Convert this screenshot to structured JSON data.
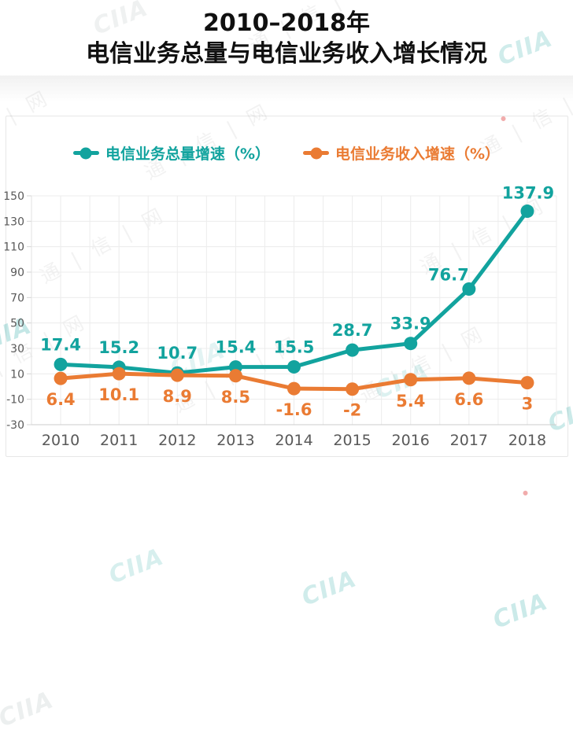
{
  "title": {
    "line1": "2010–2018年",
    "line2": "电信业务总量与电信业务收入增长情况"
  },
  "watermark": {
    "brand": "CIIA",
    "site_text": "通 | 信 | 网"
  },
  "chart_data": {
    "type": "line",
    "title": "2010–2018年电信业务总量与电信业务收入增长情况",
    "categories": [
      "2010",
      "2011",
      "2012",
      "2013",
      "2014",
      "2015",
      "2016",
      "2017",
      "2018"
    ],
    "series": [
      {
        "name": "电信业务总量增速（%）",
        "color": "#12a39e",
        "values": [
          17.4,
          15.2,
          10.7,
          15.4,
          15.5,
          28.7,
          33.9,
          76.7,
          137.9
        ]
      },
      {
        "name": "电信业务收入增速（%）",
        "color": "#ea7b33",
        "values": [
          6.4,
          10.1,
          8.9,
          8.5,
          -1.6,
          -2,
          5.4,
          6.6,
          3
        ]
      }
    ],
    "xlabel": "",
    "ylabel": "",
    "ylim": [
      -30,
      150
    ],
    "ytick_interval": 20,
    "grid": true,
    "legend_position": "top",
    "value_labels": true,
    "axis_text_color": "#595959",
    "grid_color": "#ececec"
  }
}
